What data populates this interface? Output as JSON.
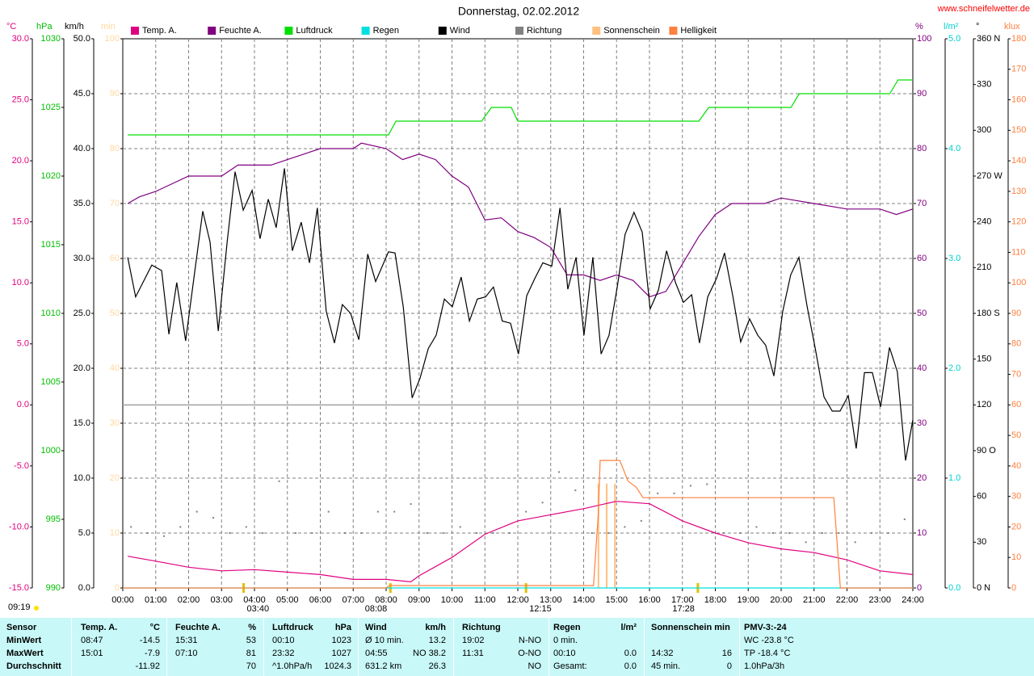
{
  "chart_data": {
    "type": "line",
    "title": "Donnerstag, 02.02.2012",
    "site": "www.schneifelwetter.de",
    "daylength": "09:19",
    "grid": true,
    "xlim": [
      0,
      24
    ],
    "xticks": [
      {
        "value": 0,
        "label": "00:00"
      },
      {
        "value": 1,
        "label": "01:00"
      },
      {
        "value": 2,
        "label": "02:00"
      },
      {
        "value": 3,
        "label": "03:00"
      },
      {
        "value": 4,
        "label": "04:00"
      },
      {
        "value": 5,
        "label": "05:00"
      },
      {
        "value": 6,
        "label": "06:00"
      },
      {
        "value": 7,
        "label": "07:00"
      },
      {
        "value": 8,
        "label": "08:00"
      },
      {
        "value": 9,
        "label": "09:00"
      },
      {
        "value": 10,
        "label": "10:00"
      },
      {
        "value": 11,
        "label": "11:00"
      },
      {
        "value": 12,
        "label": "12:00"
      },
      {
        "value": 13,
        "label": "13:00"
      },
      {
        "value": 14,
        "label": "14:00"
      },
      {
        "value": 15,
        "label": "15:00"
      },
      {
        "value": 16,
        "label": "16:00"
      },
      {
        "value": 17,
        "label": "17:00"
      },
      {
        "value": 18,
        "label": "18:00"
      },
      {
        "value": 19,
        "label": "19:00"
      },
      {
        "value": 20,
        "label": "20:00"
      },
      {
        "value": 21,
        "label": "21:00"
      },
      {
        "value": 22,
        "label": "22:00"
      },
      {
        "value": 23,
        "label": "23:00"
      },
      {
        "value": 24,
        "label": "24:00"
      }
    ],
    "annotations": [
      {
        "x": 3.67,
        "label": "03:40"
      },
      {
        "x": 8.13,
        "label": "08:08"
      },
      {
        "x": 12.25,
        "label": "12:15"
      },
      {
        "x": 17.47,
        "label": "17:28"
      }
    ],
    "axes": {
      "temp": {
        "label": "°C",
        "color": "#e0007f",
        "ylim": [
          -15,
          30
        ],
        "yticks": [
          {
            "value": 30,
            "label": "30.0"
          },
          {
            "value": 25,
            "label": "25.0"
          },
          {
            "value": 20,
            "label": "20.0"
          },
          {
            "value": 15,
            "label": "15.0"
          },
          {
            "value": 10,
            "label": "10.0"
          },
          {
            "value": 5,
            "label": "5.0"
          },
          {
            "value": 0,
            "label": "0.0"
          },
          {
            "value": -5,
            "label": "-5.0"
          },
          {
            "value": -10,
            "label": "-10.0"
          },
          {
            "value": -15,
            "label": "-15.0"
          }
        ]
      },
      "pressure": {
        "label": "hPa",
        "color": "#00c000",
        "ylim": [
          990,
          1030
        ],
        "yticks": [
          1030,
          1025,
          1020,
          1015,
          1010,
          1005,
          1000,
          995,
          990
        ]
      },
      "wind": {
        "label": "km/h",
        "color": "#000000",
        "ylim": [
          0,
          50
        ],
        "yticks": [
          {
            "value": 50,
            "label": "50.0"
          },
          {
            "value": 45,
            "label": "45.0"
          },
          {
            "value": 40,
            "label": "40.0"
          },
          {
            "value": 35,
            "label": "35.0"
          },
          {
            "value": 30,
            "label": "30.0"
          },
          {
            "value": 25,
            "label": "25.0"
          },
          {
            "value": 20,
            "label": "20.0"
          },
          {
            "value": 15,
            "label": "15.0"
          },
          {
            "value": 10,
            "label": "10.0"
          },
          {
            "value": 5,
            "label": "5.0"
          },
          {
            "value": 0,
            "label": "0.0"
          }
        ]
      },
      "minutes": {
        "label": "min",
        "color": "#ffd8a0",
        "ylim": [
          0,
          100
        ],
        "yticks": [
          100,
          90,
          80,
          70,
          60,
          50,
          40,
          30,
          20,
          10,
          0
        ]
      },
      "humidity": {
        "label": "%",
        "color": "#800080",
        "ylim": [
          0,
          100
        ],
        "yticks": [
          100,
          90,
          80,
          70,
          60,
          50,
          40,
          30,
          20,
          10,
          0
        ]
      },
      "rain": {
        "label": "l/m²",
        "color": "#00d0d0",
        "ylim": [
          0,
          5
        ],
        "yticks": [
          {
            "value": 5,
            "label": "5.0"
          },
          {
            "value": 4,
            "label": "4.0"
          },
          {
            "value": 3,
            "label": "3.0"
          },
          {
            "value": 2,
            "label": "2.0"
          },
          {
            "value": 1,
            "label": "1.0"
          },
          {
            "value": 0,
            "label": "0.0"
          }
        ]
      },
      "direction": {
        "label": "°",
        "color": "#000000",
        "ylim": [
          0,
          360
        ],
        "yticks": [
          {
            "value": 360,
            "label": "360 N"
          },
          330,
          300,
          {
            "value": 270,
            "label": "270 W"
          },
          240,
          210,
          {
            "value": 180,
            "label": "180 S"
          },
          150,
          120,
          {
            "value": 90,
            "label": "90  O"
          },
          60,
          30,
          {
            "value": 0,
            "label": "0  N"
          }
        ]
      },
      "klux": {
        "label": "klux",
        "color": "#ff8040",
        "ylim": [
          0,
          180
        ],
        "yticks": [
          180,
          170,
          160,
          150,
          140,
          130,
          120,
          110,
          100,
          90,
          80,
          70,
          60,
          50,
          40,
          30,
          20,
          10,
          0
        ]
      }
    },
    "series": [
      {
        "name": "Temp. A.",
        "color": "#e0007f",
        "axis": "temp",
        "type": "line",
        "x": [
          0.15,
          1,
          2,
          3,
          4,
          5,
          6,
          7,
          8,
          8.75,
          9,
          10,
          11,
          12,
          13,
          14,
          14.5,
          15,
          16,
          17,
          18,
          19,
          20,
          21,
          22,
          23,
          24
        ],
        "values": [
          -12.4,
          -12.8,
          -13.3,
          -13.6,
          -13.5,
          -13.7,
          -13.9,
          -14.3,
          -14.3,
          -14.5,
          -14.0,
          -12.5,
          -10.6,
          -9.5,
          -9.0,
          -8.5,
          -8.2,
          -7.9,
          -8.1,
          -9.5,
          -10.5,
          -11.3,
          -11.8,
          -12.1,
          -12.7,
          -13.6,
          -13.9
        ]
      },
      {
        "name": "Feuchte A.",
        "color": "#800080",
        "axis": "humidity",
        "type": "line",
        "x": [
          0.15,
          0.5,
          1,
          2,
          3,
          3.5,
          4.5,
          5,
          6,
          7,
          7.25,
          8,
          8.5,
          9,
          9.5,
          10,
          10.5,
          11,
          11.5,
          12,
          12.5,
          13,
          13.5,
          14,
          14.5,
          15,
          15.5,
          16,
          16.5,
          17,
          17.5,
          18,
          18.5,
          19.5,
          20,
          21,
          22,
          23,
          23.5,
          24
        ],
        "values": [
          70,
          71.2,
          72.2,
          75,
          75,
          77,
          77,
          78,
          80,
          80,
          81,
          80,
          78,
          79,
          78,
          75,
          73,
          67,
          67.4,
          64.9,
          63.8,
          62,
          57,
          57,
          56,
          57,
          56,
          53,
          54,
          59,
          64,
          68,
          70,
          70,
          71,
          70,
          69,
          69,
          68,
          69
        ]
      },
      {
        "name": "Luftdruck",
        "color": "#00e000",
        "axis": "pressure",
        "type": "line",
        "x": [
          0.15,
          8.07,
          8.3,
          10.9,
          11.2,
          11.8,
          12.0,
          17.5,
          17.8,
          20.3,
          20.55,
          23.3,
          23.55,
          24
        ],
        "values": [
          1023,
          1023,
          1024,
          1024,
          1025,
          1025,
          1024,
          1024,
          1025,
          1025,
          1026,
          1026,
          1027,
          1027
        ]
      },
      {
        "name": "Regen",
        "color": "#00e0e0",
        "axis": "rain",
        "type": "line",
        "x": [
          0,
          24
        ],
        "values": [
          0,
          0
        ]
      },
      {
        "name": "Wind",
        "color": "#000000",
        "axis": "wind",
        "type": "line",
        "x": [
          0.15,
          0.39,
          0.88,
          1.18,
          1.4,
          1.64,
          1.91,
          2.16,
          2.43,
          2.65,
          2.9,
          3.17,
          3.41,
          3.66,
          3.93,
          4.17,
          4.42,
          4.66,
          4.91,
          5.15,
          5.42,
          5.67,
          5.91,
          6.18,
          6.43,
          6.67,
          6.92,
          7.17,
          7.44,
          7.68,
          8.07,
          8.27,
          8.52,
          8.79,
          9.03,
          9.28,
          9.52,
          9.77,
          10.01,
          10.28,
          10.53,
          10.77,
          11.02,
          11.26,
          11.53,
          11.78,
          12.02,
          12.27,
          12.52,
          12.76,
          13.03,
          13.28,
          13.52,
          13.77,
          14.01,
          14.28,
          14.53,
          14.77,
          15.02,
          15.26,
          15.53,
          15.78,
          16.02,
          16.27,
          16.52,
          16.79,
          17.03,
          17.28,
          17.52,
          17.77,
          18.04,
          18.28,
          18.53,
          18.77,
          19.04,
          19.29,
          19.53,
          19.78,
          20.05,
          20.29,
          20.54,
          20.79,
          21.03,
          21.3,
          21.55,
          21.79,
          22.04,
          22.28,
          22.53,
          22.77,
          23.02,
          23.29,
          23.53,
          23.78,
          24.0
        ],
        "values": [
          30.1,
          26.5,
          29.4,
          28.9,
          23.1,
          27.8,
          22.5,
          28.2,
          34.3,
          31.5,
          23.4,
          31.5,
          37.9,
          34.4,
          36.2,
          31.8,
          35.4,
          32.8,
          38.2,
          30.7,
          33.3,
          29.6,
          34.6,
          25.2,
          22.3,
          25.8,
          25.0,
          22.6,
          30.4,
          27.9,
          30.6,
          30.5,
          25.6,
          17.3,
          19.1,
          21.8,
          23.0,
          26.3,
          25.6,
          28.3,
          24.3,
          26.3,
          26.5,
          27.4,
          24.3,
          24.1,
          21.3,
          26.6,
          28.2,
          29.6,
          29.3,
          34.6,
          27.2,
          30.1,
          23.0,
          30.1,
          21.3,
          23.0,
          27.4,
          32.2,
          34.2,
          32.4,
          25.4,
          27.1,
          30.7,
          27.8,
          26.0,
          26.7,
          22.3,
          26.5,
          28.2,
          30.5,
          26.6,
          22.4,
          24.5,
          23.0,
          22.1,
          19.3,
          25.2,
          28.5,
          30.1,
          25.6,
          21.9,
          17.4,
          16.1,
          16.1,
          17.5,
          12.7,
          19.6,
          19.6,
          16.5,
          21.9,
          19.7,
          11.6,
          15.3
        ]
      },
      {
        "name": "Richtung",
        "color": "#808080",
        "axis": "direction",
        "type": "scatter",
        "x": [
          0.25,
          0.75,
          1.25,
          1.75,
          2.25,
          2.75,
          3.25,
          3.75,
          4.25,
          4.75,
          5.25,
          5.75,
          6.25,
          6.75,
          7.25,
          7.75,
          8.25,
          8.75,
          9.25,
          9.75,
          10.25,
          10.75,
          11.25,
          11.75,
          12.25,
          12.75,
          13.25,
          13.75,
          14.25,
          14.75,
          15.25,
          15.75,
          16.25,
          16.75,
          17.25,
          17.75,
          18.25,
          18.75,
          19.25,
          19.75,
          20.25,
          20.75,
          21.25,
          21.75,
          22.25,
          22.75,
          23.25,
          23.75
        ],
        "values": [
          40,
          36,
          34,
          40,
          50,
          46,
          36,
          40,
          36,
          70,
          36,
          36,
          50,
          36,
          36,
          50,
          50,
          55,
          36,
          36,
          40,
          36,
          36,
          36,
          50,
          56,
          76,
          64,
          36,
          36,
          40,
          44,
          62,
          62,
          67,
          68,
          36,
          36,
          40,
          36,
          36,
          30,
          36,
          36,
          30,
          36,
          36,
          45
        ]
      },
      {
        "name": "Sonnenschein",
        "color": "#ffc080",
        "axis": "minutes",
        "type": "bar",
        "x": [
          14.45,
          14.7,
          14.95
        ],
        "values": [
          19,
          19,
          19
        ]
      },
      {
        "name": "Helligkeit",
        "color": "#ff8040",
        "axis": "klux",
        "type": "line",
        "x": [
          0,
          8.0,
          8.1,
          14.3,
          14.45,
          14.5,
          15.1,
          15.35,
          15.6,
          15.8,
          21.6,
          21.8,
          24
        ],
        "values": [
          0,
          0,
          0.8,
          0.8,
          25,
          41.8,
          41.8,
          35,
          33,
          29.6,
          29.6,
          0,
          0
        ]
      }
    ]
  },
  "table": {
    "rows": [
      [
        "Sensor",
        "Temp. A.",
        "°C",
        "Feuchte A.",
        "%",
        "Luftdruck",
        "hPa",
        "Wind",
        "km/h",
        "Richtung",
        null,
        "Regen",
        "l/m²",
        "Sonnenschein min",
        null,
        "PMV-3:-24"
      ],
      [
        "MinWert",
        "08:47",
        "-14.5",
        "15:31",
        "53",
        "00:10",
        "1023",
        "Ø 10 min.",
        "13.2",
        "19:02",
        "N-NO",
        "0 min.",
        null,
        null,
        null,
        "WC -23.8 °C"
      ],
      [
        "MaxWert",
        "15:01",
        "-7.9",
        "07:10",
        "81",
        "23:32",
        "1027",
        "04:55",
        "NO 38.2",
        "11:31",
        "O-NO",
        "00:10",
        "0.0",
        "14:32",
        "16",
        "TP -18.4 °C"
      ],
      [
        "Durchschnitt",
        null,
        "-11.92",
        null,
        "70",
        "^1.0hPa/h",
        "1024.3",
        "631.2 km",
        "26.3",
        null,
        "NO",
        "Gesamt:",
        "0.0",
        "45 min.",
        "0",
        "1.0hPa/3h"
      ]
    ]
  }
}
